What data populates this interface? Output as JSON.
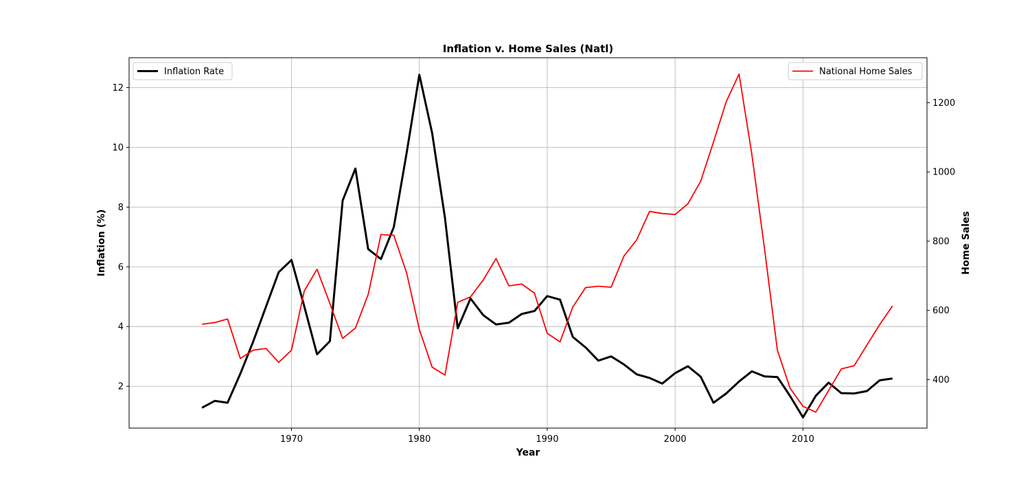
{
  "chart_data": {
    "type": "line",
    "title": "Inflation v. Home Sales (Natl)",
    "xlabel": "Year",
    "ylabel": "Inflation (%)",
    "y2label": "Home Sales",
    "xlim": [
      1957.3,
      2019.7
    ],
    "ylim": [
      0.6,
      13.0
    ],
    "y2lim": [
      260,
      1330
    ],
    "xticks": [
      1970,
      1980,
      1990,
      2000,
      2010
    ],
    "yticks": [
      2,
      4,
      6,
      8,
      10,
      12
    ],
    "y2ticks": [
      400,
      600,
      800,
      1000,
      1200
    ],
    "grid": true,
    "x": [
      1963,
      1964,
      1965,
      1966,
      1967,
      1968,
      1969,
      1970,
      1971,
      1972,
      1973,
      1974,
      1975,
      1976,
      1977,
      1978,
      1979,
      1980,
      1981,
      1982,
      1983,
      1984,
      1985,
      1986,
      1987,
      1988,
      1989,
      1990,
      1991,
      1992,
      1993,
      1994,
      1995,
      1996,
      1997,
      1998,
      1999,
      2000,
      2001,
      2002,
      2003,
      2004,
      2005,
      2006,
      2007,
      2008,
      2009,
      2010,
      2011,
      2012,
      2013,
      2014,
      2015,
      2016,
      2017
    ],
    "series": [
      {
        "name": "Inflation Rate",
        "axis": "left",
        "color": "#000000",
        "legend_position": "top-left",
        "values": [
          1.28,
          1.51,
          1.45,
          2.42,
          3.49,
          4.66,
          5.82,
          6.23,
          4.68,
          3.07,
          3.51,
          8.22,
          9.29,
          6.59,
          6.26,
          7.33,
          9.8,
          12.43,
          10.48,
          7.64,
          3.94,
          4.94,
          4.38,
          4.07,
          4.13,
          4.42,
          4.52,
          5.02,
          4.9,
          3.65,
          3.3,
          2.86,
          3.0,
          2.73,
          2.4,
          2.28,
          2.09,
          2.44,
          2.67,
          2.32,
          1.45,
          1.76,
          2.16,
          2.5,
          2.33,
          2.31,
          1.67,
          0.96,
          1.68,
          2.12,
          1.77,
          1.76,
          1.84,
          2.2,
          2.26
        ]
      },
      {
        "name": "National Home Sales",
        "axis": "right",
        "color": "#ff0000",
        "legend_position": "top-right",
        "values": [
          560,
          565,
          575,
          461,
          485,
          490,
          450,
          485,
          656,
          719,
          620,
          519,
          549,
          646,
          819,
          817,
          709,
          545,
          436,
          413,
          623,
          639,
          688,
          750,
          671,
          676,
          650,
          534,
          509,
          610,
          666,
          670,
          667,
          757,
          804,
          886,
          880,
          877,
          908,
          973,
          1086,
          1203,
          1283,
          1051,
          776,
          485,
          375,
          323,
          306,
          368,
          431,
          440,
          500,
          559,
          613
        ]
      }
    ]
  }
}
